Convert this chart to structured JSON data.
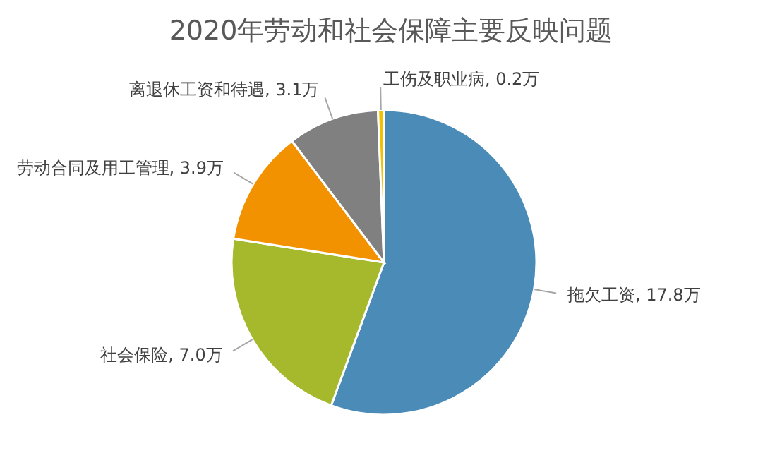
{
  "chart_data": {
    "type": "pie",
    "title": "2020年劳动和社会保障主要反映问题",
    "categories": [
      "拖欠工资",
      "社会保险",
      "劳动合同及用工管理",
      "离退休工资和待遇",
      "工伤及职业病"
    ],
    "values": [
      17.8,
      7.0,
      3.9,
      3.1,
      0.2
    ],
    "value_labels": [
      "17.8万",
      "7.0万",
      "3.9万",
      "3.1万",
      "0.2万"
    ],
    "colors": [
      "#4a8bb8",
      "#a6b82b",
      "#f29200",
      "#808080",
      "#f2c200"
    ]
  }
}
